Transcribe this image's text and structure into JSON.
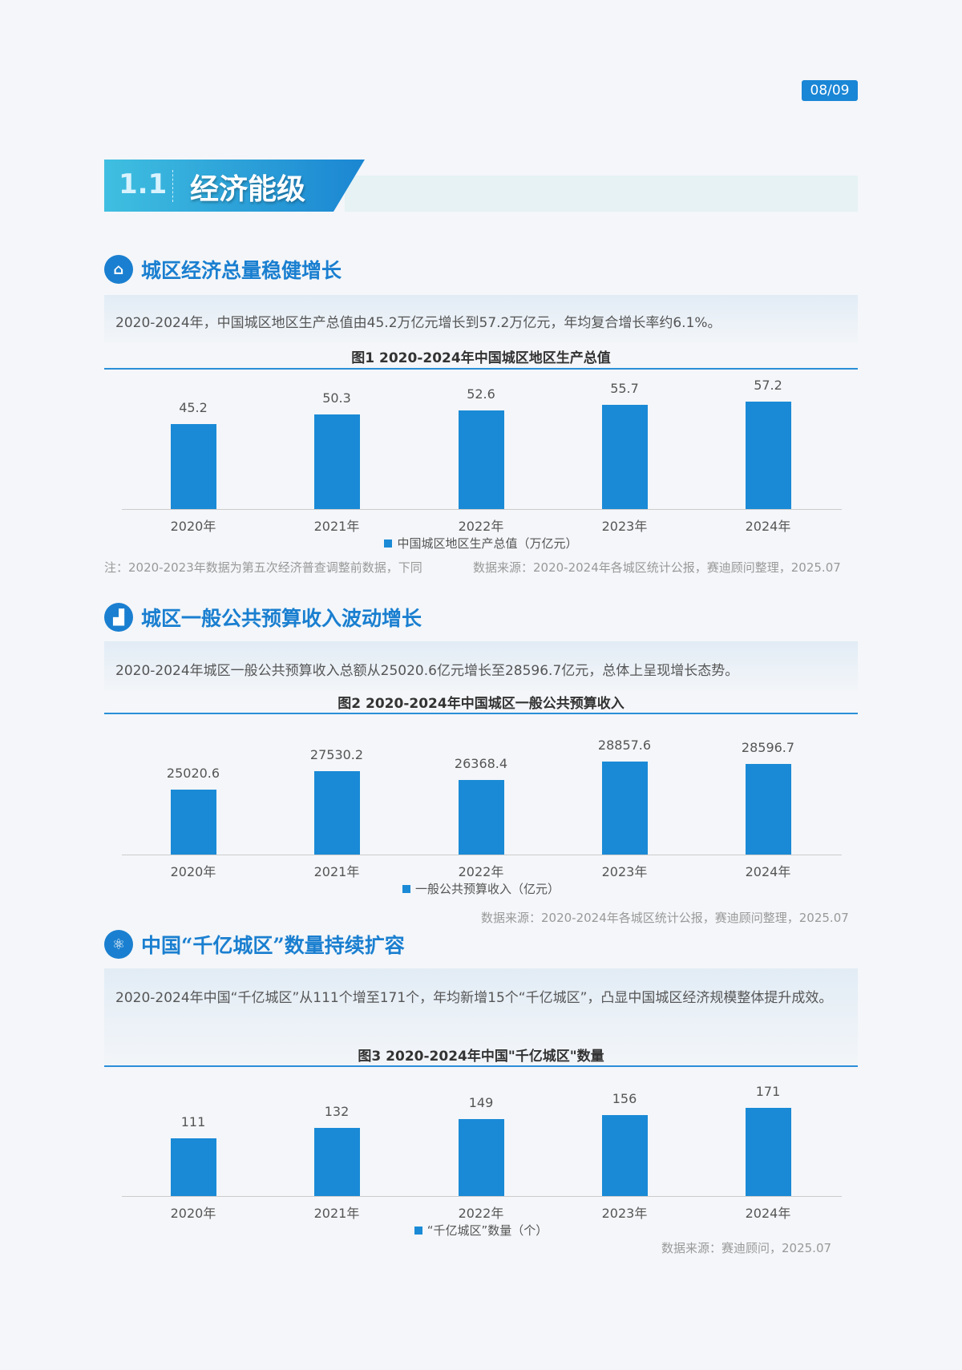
{
  "page_number": "08/09",
  "section": {
    "number": "1.1",
    "title": "经济能级"
  },
  "blocks": [
    {
      "icon": "house-icon",
      "heading": "城区经济总量稳健增长",
      "paragraph": "2020-2024年，中国城区地区生产总值由45.2万亿元增长到57.2万亿元，年均复合增长率约6.1%。",
      "figure_title": "图1  2020-2024年中国城区地区生产总值",
      "note": "注：2020-2023年数据为第五次经济普查调整前数据，下同",
      "source": "数据来源：2020-2024年各城区统计公报，赛迪顾问整理，2025.07"
    },
    {
      "icon": "bar-growth-icon",
      "heading": "城区一般公共预算收入波动增长",
      "paragraph": "2020-2024年城区一般公共预算收入总额从25020.6亿元增长至28596.7亿元，总体上呈现增长态势。",
      "figure_title": "图2  2020-2024年中国城区一般公共预算收入",
      "source": "数据来源：2020-2024年各城区统计公报，赛迪顾问整理，2025.07"
    },
    {
      "icon": "atom-icon",
      "heading": "中国“千亿城区”数量持续扩容",
      "paragraph": "2020-2024年中国“千亿城区”从111个增至171个，年均新增15个“千亿城区”，凸显中国城区经济规模整体提升成效。",
      "figure_title": "图3  2020-2024年中国\"千亿城区\"数量",
      "source": "数据来源：赛迪顾问，2025.07"
    }
  ],
  "chart_data": [
    {
      "type": "bar",
      "categories": [
        "2020年",
        "2021年",
        "2022年",
        "2023年",
        "2024年"
      ],
      "series": [
        {
          "name": "中国城区地区生产总值（万亿元）",
          "values": [
            45.2,
            50.3,
            52.6,
            55.7,
            57.2
          ]
        }
      ],
      "value_labels": [
        "45.2",
        "50.3",
        "52.6",
        "55.7",
        "57.2"
      ],
      "ylim": [
        0,
        70
      ],
      "legend": "bottom",
      "color": "#1a8ad6"
    },
    {
      "type": "bar",
      "categories": [
        "2020年",
        "2021年",
        "2022年",
        "2023年",
        "2024年"
      ],
      "series": [
        {
          "name": "一般公共预算收入（亿元）",
          "values": [
            25020.6,
            27530.2,
            26368.4,
            28857.6,
            28596.7
          ]
        }
      ],
      "value_labels": [
        "25020.6",
        "27530.2",
        "26368.4",
        "28857.6",
        "28596.7"
      ],
      "ylim": [
        16000,
        32000
      ],
      "legend": "bottom",
      "color": "#1a8ad6"
    },
    {
      "type": "bar",
      "categories": [
        "2020年",
        "2021年",
        "2022年",
        "2023年",
        "2024年"
      ],
      "series": [
        {
          "name": "“千亿城区”数量（个）",
          "values": [
            111,
            132,
            149,
            156,
            171
          ]
        }
      ],
      "value_labels": [
        "111",
        "132",
        "149",
        "156",
        "171"
      ],
      "ylim": [
        0,
        200
      ],
      "legend": "bottom",
      "color": "#1a8ad6"
    }
  ]
}
